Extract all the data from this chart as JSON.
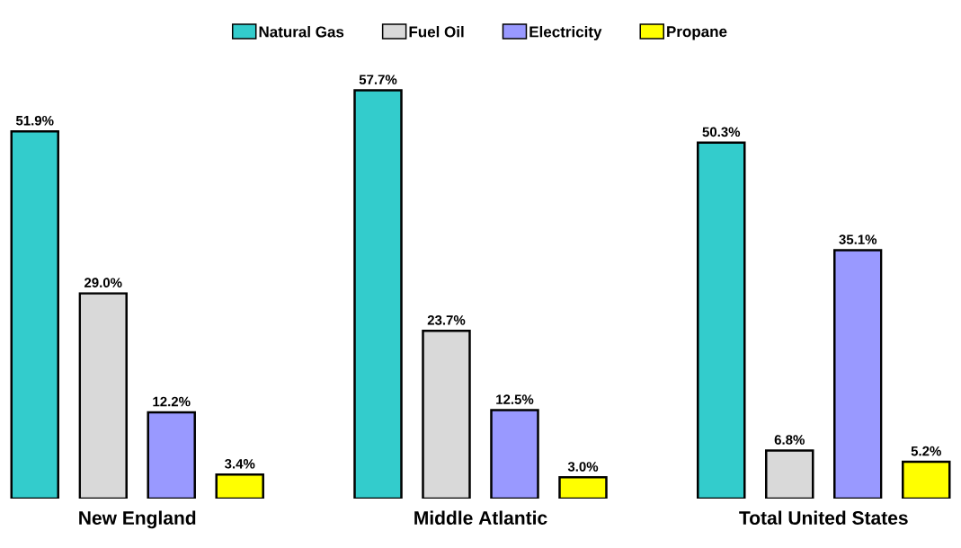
{
  "chart_data": {
    "type": "bar",
    "categories": [
      "New England",
      "Middle Atlantic",
      "Total United States"
    ],
    "series": [
      {
        "name": "Natural Gas",
        "color": "#33cccc",
        "values": [
          51.9,
          57.7,
          50.3
        ],
        "value_labels": [
          "51.9%",
          "57.7%",
          "50.3%"
        ]
      },
      {
        "name": "Fuel Oil",
        "color": "#d9d9d9",
        "values": [
          29.0,
          23.7,
          6.8
        ],
        "value_labels": [
          "29.0%",
          "23.7%",
          "6.8%"
        ]
      },
      {
        "name": "Electricity",
        "color": "#9999ff",
        "values": [
          12.2,
          12.5,
          35.1
        ],
        "value_labels": [
          "12.2%",
          "12.5%",
          "35.1%"
        ]
      },
      {
        "name": "Propane",
        "color": "#ffff00",
        "values": [
          3.4,
          3.0,
          5.2
        ],
        "value_labels": [
          "3.4%",
          "3.0%",
          "5.2%"
        ]
      }
    ],
    "legend": "top"
  }
}
